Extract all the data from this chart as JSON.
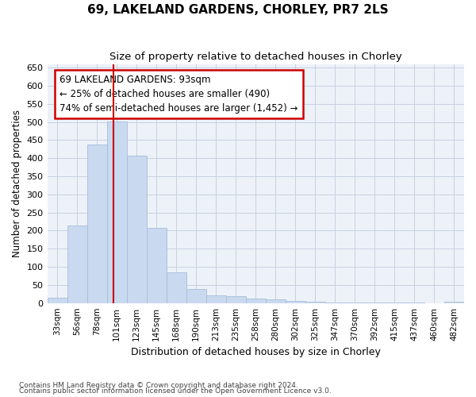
{
  "title1": "69, LAKELAND GARDENS, CHORLEY, PR7 2LS",
  "title2": "Size of property relative to detached houses in Chorley",
  "xlabel": "Distribution of detached houses by size in Chorley",
  "ylabel": "Number of detached properties",
  "bar_labels": [
    "33sqm",
    "56sqm",
    "78sqm",
    "101sqm",
    "123sqm",
    "145sqm",
    "168sqm",
    "190sqm",
    "213sqm",
    "235sqm",
    "258sqm",
    "280sqm",
    "302sqm",
    "325sqm",
    "347sqm",
    "370sqm",
    "392sqm",
    "415sqm",
    "437sqm",
    "460sqm",
    "482sqm"
  ],
  "bar_values": [
    15,
    213,
    437,
    502,
    407,
    207,
    85,
    39,
    22,
    18,
    12,
    10,
    6,
    3,
    2,
    2,
    1,
    1,
    1,
    0,
    4
  ],
  "bar_color": "#c9d9f0",
  "bar_edgecolor": "#a8bdd8",
  "grid_color": "#c8d0e0",
  "bg_color": "#edf2f9",
  "red_line_x": 2.82,
  "annotation_line1": "69 LAKELAND GARDENS: 93sqm",
  "annotation_line2": "← 25% of detached houses are smaller (490)",
  "annotation_line3": "74% of semi-detached houses are larger (1,452) →",
  "annotation_box_color": "#ffffff",
  "annotation_border_color": "#cc0000",
  "ylim": [
    0,
    660
  ],
  "yticks": [
    0,
    50,
    100,
    150,
    200,
    250,
    300,
    350,
    400,
    450,
    500,
    550,
    600,
    650
  ],
  "footer_line1": "Contains HM Land Registry data © Crown copyright and database right 2024.",
  "footer_line2": "Contains public sector information licensed under the Open Government Licence v3.0."
}
